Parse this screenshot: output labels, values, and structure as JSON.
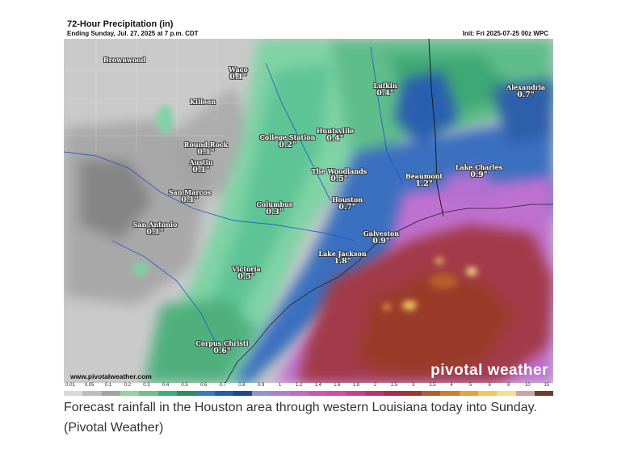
{
  "map": {
    "title": "72-Hour Precipitation (in)",
    "subtitle": "Ending Sunday, Jul. 27, 2025 at 7 p.m. CDT",
    "init": "Init: Fri 2025-07-25 00z WPC",
    "watermark_url": "www.pivotalweather.com",
    "brand": "pivotal weather",
    "cities": [
      {
        "name": "Brownwood",
        "value": ""
      },
      {
        "name": "Waco",
        "value": "0.1\""
      },
      {
        "name": "Killeen",
        "value": ""
      },
      {
        "name": "Lufkin",
        "value": "0.4\""
      },
      {
        "name": "Alexandria",
        "value": "0.7\""
      },
      {
        "name": "Huntsville",
        "value": "0.4\""
      },
      {
        "name": "College Station",
        "value": "0.2\""
      },
      {
        "name": "Round Rock",
        "value": "0.1\""
      },
      {
        "name": "Austin",
        "value": "0.1\""
      },
      {
        "name": "The Woodlands",
        "value": "0.5\""
      },
      {
        "name": "Lake Charles",
        "value": "0.9\""
      },
      {
        "name": "Beaumont",
        "value": "1.2\""
      },
      {
        "name": "San Marcos",
        "value": "0.1\""
      },
      {
        "name": "Columbus",
        "value": "0.3\""
      },
      {
        "name": "Houston",
        "value": "0.7\""
      },
      {
        "name": "San Antonio",
        "value": "0.1\""
      },
      {
        "name": "Galveston",
        "value": "0.9\""
      },
      {
        "name": "Lake Jackson",
        "value": "1.8\""
      },
      {
        "name": "Victoria",
        "value": "0.5\""
      },
      {
        "name": "Corpus Christi",
        "value": "0.6\""
      }
    ],
    "scale": {
      "labels": [
        "0.01",
        "0.05",
        "0.1",
        "0.2",
        "0.3",
        "0.4",
        "0.5",
        "0.6",
        "0.7",
        "0.8",
        "0.9",
        "1",
        "1.2",
        "1.4",
        "1.6",
        "1.8",
        "2",
        "2.5",
        "3",
        "3.5",
        "4",
        "5",
        "6",
        "8",
        "10",
        "15"
      ],
      "colors": [
        "#d9d9d9",
        "#bdbdbd",
        "#a3a3a3",
        "#8fd3a0",
        "#66c48b",
        "#3fae73",
        "#2b8f5e",
        "#2f7fc1",
        "#1f5fb0",
        "#174a98",
        "#8e95d6",
        "#b07fcf",
        "#c36cc4",
        "#cd55b6",
        "#d64aa6",
        "#c8418f",
        "#b8356e",
        "#a62b4f",
        "#9a3a2c",
        "#b55b2c",
        "#d07c2e",
        "#e6a33a",
        "#f0c85a",
        "#f4e08a",
        "#c9a3a0",
        "#6b3b2c"
      ]
    },
    "colors": {
      "accent_purple": "#c06fd0",
      "accent_red": "#a23a4a",
      "accent_green": "#5fc495",
      "accent_blue": "#3a6fc0"
    }
  },
  "caption": "Forecast rainfall in the Houston area through western Louisiana today into Sunday. (Pivotal Weather)"
}
